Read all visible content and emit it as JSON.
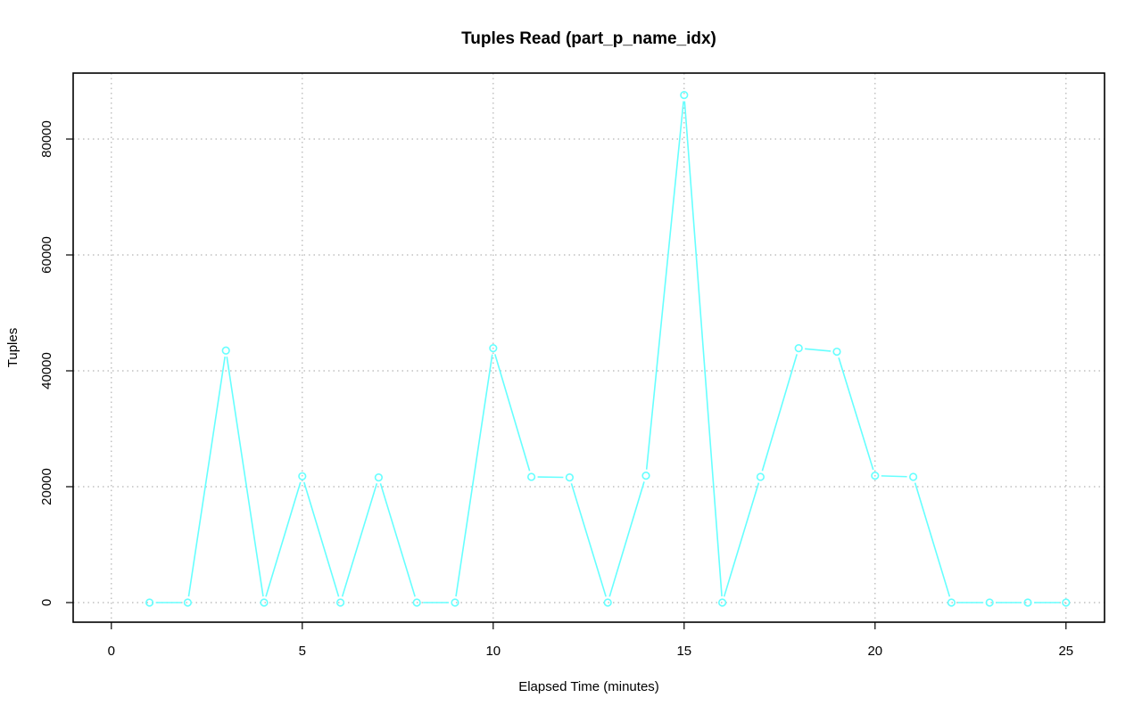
{
  "chart_data": {
    "type": "line",
    "title": "Tuples Read (part_p_name_idx)",
    "xlabel": "Elapsed Time (minutes)",
    "ylabel": "Tuples",
    "xlim": [
      0,
      25
    ],
    "ylim": [
      0,
      87600
    ],
    "x_ticks": [
      0,
      5,
      10,
      15,
      20,
      25
    ],
    "y_ticks": [
      0,
      20000,
      40000,
      60000,
      80000
    ],
    "grid": true,
    "series_color": "#66ffff",
    "series": [
      {
        "x": [
          1,
          2,
          3,
          4,
          5,
          6,
          7,
          8,
          9,
          10,
          11,
          12,
          13,
          14,
          15,
          16,
          17,
          18,
          19,
          20,
          21,
          22,
          23,
          24,
          25
        ],
        "values": [
          0,
          0,
          43500,
          0,
          21800,
          0,
          21600,
          0,
          0,
          43900,
          21700,
          21600,
          0,
          21900,
          87600,
          0,
          21700,
          43900,
          43300,
          21900,
          21700,
          0,
          0,
          0,
          0
        ]
      }
    ]
  }
}
